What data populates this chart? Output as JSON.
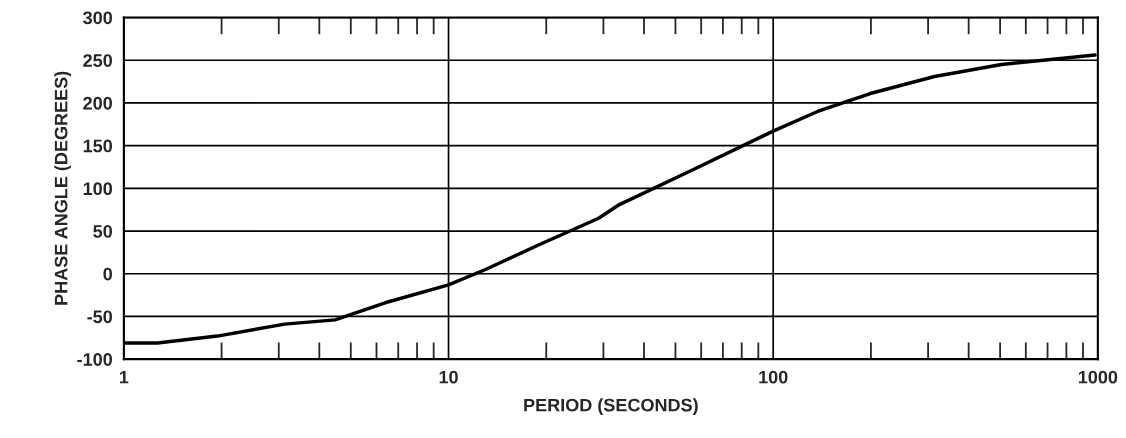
{
  "chart_data": {
    "type": "line",
    "xlabel": "PERIOD (SECONDS)",
    "ylabel": "PHASE ANGLE (DEGREES)",
    "x": [
      1,
      1.27,
      1.94,
      3.13,
      4.47,
      6.38,
      10,
      13,
      19,
      29,
      33.6,
      56.8,
      100,
      137,
      199,
      314,
      505,
      980
    ],
    "series": [
      {
        "color": "#000000",
        "values": [
          -81,
          -81,
          -73,
          -59,
          -54,
          -34,
          -13,
          5,
          34,
          65,
          81,
          122,
          167,
          190,
          211,
          231,
          245,
          256
        ]
      }
    ],
    "log": "x",
    "xlim": [
      1,
      1000
    ],
    "xticks": [
      1,
      10,
      100,
      1000
    ],
    "ylim": [
      -100,
      300
    ],
    "yticks": [
      -100,
      -50,
      0,
      50,
      100,
      150,
      200,
      250,
      300
    ],
    "grid": true,
    "legend": false,
    "marker": "none",
    "line_style": "solid"
  }
}
